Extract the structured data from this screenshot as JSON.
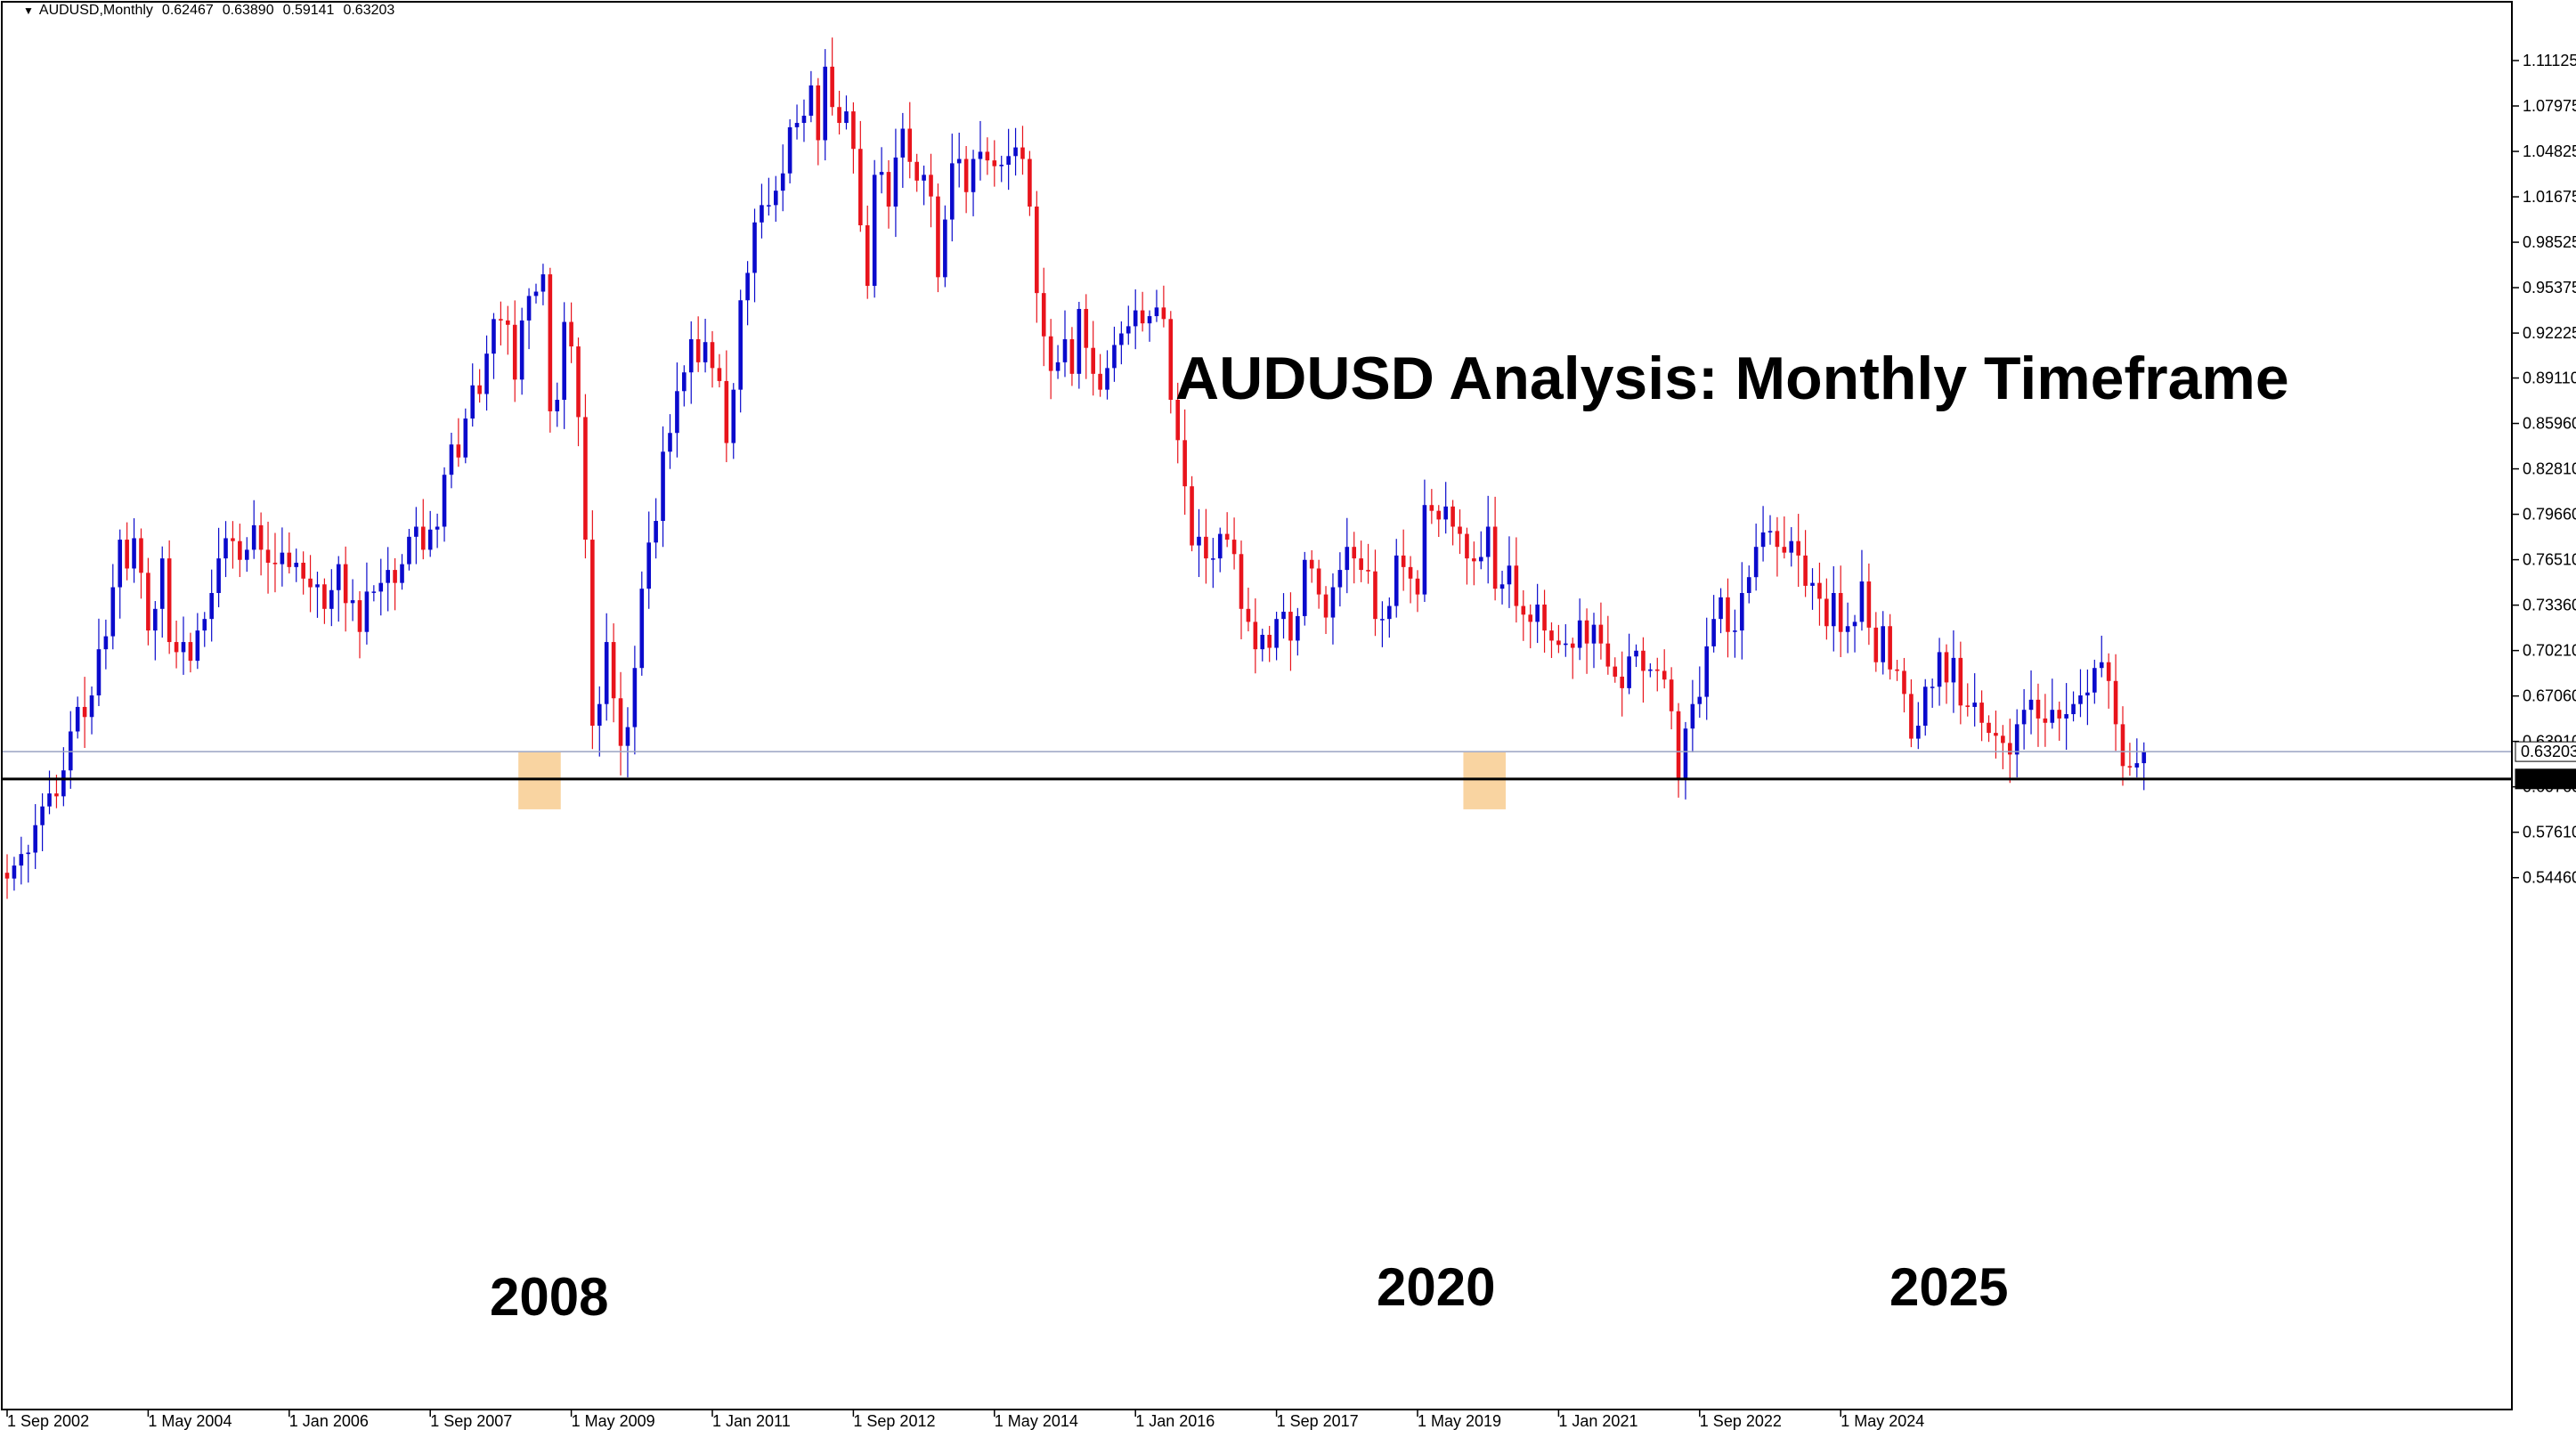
{
  "header": {
    "symbol": "AUDUSD,Monthly",
    "open": "0.62467",
    "high": "0.63890",
    "low": "0.59141",
    "close": "0.63203"
  },
  "colors": {
    "bull": "#0a0acc",
    "bear": "#e8141c",
    "highlight": "#f8c98a",
    "grid_line": "#9aa3c2",
    "support_line": "#000000"
  },
  "chart_data": {
    "type": "candlestick",
    "title": "AUDUSD Analysis: Monthly Timeframe",
    "xlabel": "",
    "ylabel": "",
    "ylim": [
      0.53,
      1.125
    ],
    "grid": false,
    "price_ticks": [
      "1.11125",
      "1.07975",
      "1.04825",
      "1.01675",
      "0.98525",
      "0.95375",
      "0.92225",
      "0.89110",
      "0.85960",
      "0.82810",
      "0.79660",
      "0.76510",
      "0.73360",
      "0.70210",
      "0.67060",
      "0.63910",
      "0.60760",
      "0.57610",
      "0.54460"
    ],
    "date_ticks": [
      "1 Sep 2002",
      "1 May 2004",
      "1 Jan 2006",
      "1 Sep 2007",
      "1 May 2009",
      "1 Jan 2011",
      "1 Sep 2012",
      "1 May 2014",
      "1 Jan 2016",
      "1 Sep 2017",
      "1 May 2019",
      "1 Jan 2021",
      "1 Sep 2022",
      "1 May 2024"
    ],
    "current_price": "0.63203",
    "support_level": "0.61306",
    "annotations": [
      "2008",
      "2020",
      "2025"
    ],
    "highlight_zones": [
      {
        "from": "2008-10",
        "to": "2009-03",
        "low": 0.592,
        "high": 0.6315
      },
      {
        "from": "2019-12",
        "to": "2020-05",
        "low": 0.592,
        "high": 0.6315
      }
    ],
    "series": [
      {
        "start": "2002-09",
        "interval": "1M",
        "close": [
          0.544,
          0.553,
          0.561,
          0.562,
          0.581,
          0.594,
          0.603,
          0.601,
          0.619,
          0.646,
          0.663,
          0.656,
          0.671,
          0.703,
          0.712,
          0.746,
          0.779,
          0.759,
          0.78,
          0.756,
          0.716,
          0.731,
          0.766,
          0.708,
          0.701,
          0.708,
          0.695,
          0.716,
          0.724,
          0.742,
          0.766,
          0.78,
          0.778,
          0.765,
          0.772,
          0.789,
          0.772,
          0.763,
          0.762,
          0.77,
          0.76,
          0.763,
          0.752,
          0.746,
          0.748,
          0.731,
          0.744,
          0.762,
          0.735,
          0.737,
          0.715,
          0.743,
          0.743,
          0.749,
          0.758,
          0.749,
          0.762,
          0.781,
          0.788,
          0.772,
          0.786,
          0.788,
          0.824,
          0.845,
          0.836,
          0.863,
          0.886,
          0.88,
          0.908,
          0.932,
          0.931,
          0.928,
          0.89,
          0.931,
          0.948,
          0.951,
          0.963,
          0.868,
          0.876,
          0.93,
          0.913,
          0.864,
          0.779,
          0.65,
          0.665,
          0.708,
          0.669,
          0.636,
          0.649,
          0.69,
          0.745,
          0.777,
          0.792,
          0.84,
          0.853,
          0.882,
          0.895,
          0.918,
          0.902,
          0.916,
          0.898,
          0.889,
          0.846,
          0.883,
          0.945,
          0.964,
          0.999,
          1.011,
          1.011,
          1.021,
          1.033,
          1.065,
          1.068,
          1.073,
          1.094,
          1.056,
          1.107,
          1.079,
          1.068,
          1.076,
          1.05,
          0.997,
          0.955,
          1.032,
          1.034,
          1.01,
          1.044,
          1.064,
          1.041,
          1.028,
          1.032,
          1.017,
          0.961,
          1.001,
          1.04,
          1.043,
          1.02,
          1.043,
          1.048,
          1.042,
          1.038,
          1.039,
          1.045,
          1.051,
          1.043,
          1.01,
          0.95,
          0.92,
          0.896,
          0.902,
          0.918,
          0.894,
          0.939,
          0.912,
          0.894,
          0.883,
          0.898,
          0.914,
          0.922,
          0.927,
          0.938,
          0.929,
          0.934,
          0.94,
          0.932,
          0.876,
          0.848,
          0.816,
          0.775,
          0.781,
          0.766,
          0.766,
          0.783,
          0.779,
          0.769,
          0.731,
          0.722,
          0.703,
          0.713,
          0.704,
          0.724,
          0.729,
          0.709,
          0.726,
          0.765,
          0.759,
          0.741,
          0.725,
          0.746,
          0.758,
          0.774,
          0.766,
          0.758,
          0.757,
          0.724,
          0.724,
          0.733,
          0.768,
          0.76,
          0.752,
          0.741,
          0.803,
          0.799,
          0.793,
          0.802,
          0.788,
          0.783,
          0.766,
          0.764,
          0.767,
          0.788,
          0.745,
          0.748,
          0.761,
          0.733,
          0.727,
          0.722,
          0.734,
          0.716,
          0.709,
          0.706,
          0.707,
          0.704,
          0.723,
          0.707,
          0.72,
          0.707,
          0.691,
          0.684,
          0.676,
          0.698,
          0.702,
          0.688,
          0.689,
          0.688,
          0.682,
          0.66,
          0.613,
          0.648,
          0.665,
          0.67,
          0.705,
          0.724,
          0.739,
          0.715,
          0.716,
          0.742,
          0.753,
          0.774,
          0.784,
          0.785,
          0.774,
          0.77,
          0.778,
          0.768,
          0.747,
          0.749,
          0.738,
          0.719,
          0.742,
          0.715,
          0.719,
          0.722,
          0.75,
          0.718,
          0.694,
          0.719,
          0.689,
          0.688,
          0.672,
          0.641,
          0.65,
          0.677,
          0.677,
          0.701,
          0.68,
          0.697,
          0.664,
          0.663,
          0.666,
          0.652,
          0.645,
          0.643,
          0.638,
          0.63,
          0.651,
          0.661,
          0.668,
          0.655,
          0.652,
          0.661,
          0.655,
          0.658,
          0.665,
          0.671,
          0.673,
          0.69,
          0.694,
          0.681,
          0.651,
          0.622,
          0.621,
          0.624,
          0.632
        ]
      }
    ]
  }
}
